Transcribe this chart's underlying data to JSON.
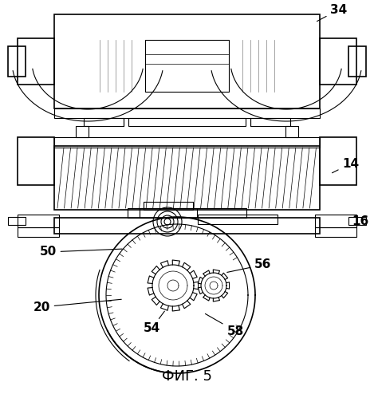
{
  "title": "ФИГ. 5",
  "title_fontsize": 13,
  "background_color": "#ffffff",
  "line_color": "#000000",
  "label_34": "34",
  "label_14": "14",
  "label_16": "16",
  "label_50": "50",
  "label_20": "20",
  "label_54": "54",
  "label_56": "56",
  "label_58": "58",
  "fig_width": 4.69,
  "fig_height": 4.99,
  "dpi": 100
}
